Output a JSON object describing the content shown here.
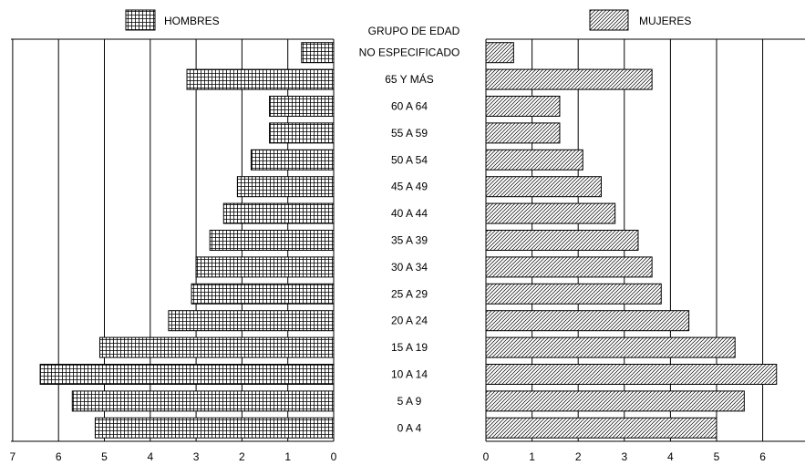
{
  "chart_data": {
    "type": "bar",
    "orientation": "population-pyramid",
    "center_title": "GRUPO DE EDAD",
    "legend": {
      "left": {
        "label": "HOMBRES",
        "pattern": "grid"
      },
      "right": {
        "label": "MUJERES",
        "pattern": "diagonal"
      }
    },
    "categories": [
      "NO ESPECIFICADO",
      "65 Y MÁS",
      "60 A 64",
      "55 A 59",
      "50 A 54",
      "45 A 49",
      "40 A 44",
      "35 A 39",
      "30 A 34",
      "25 A 29",
      "20 A 24",
      "15 A 19",
      "10 A 14",
      "5 A 9",
      "0 A 4"
    ],
    "series": [
      {
        "name": "HOMBRES",
        "side": "left",
        "values": [
          0.7,
          3.2,
          1.4,
          1.4,
          1.8,
          2.1,
          2.4,
          2.7,
          3.0,
          3.1,
          3.6,
          5.1,
          6.4,
          5.7,
          5.2
        ]
      },
      {
        "name": "MUJERES",
        "side": "right",
        "values": [
          0.6,
          3.6,
          1.6,
          1.6,
          2.1,
          2.5,
          2.8,
          3.3,
          3.6,
          3.8,
          4.4,
          5.4,
          6.3,
          5.6,
          5.0
        ]
      }
    ],
    "left_axis": {
      "ticks": [
        "7",
        "6",
        "5",
        "4",
        "3",
        "2",
        "1",
        "0"
      ],
      "range": [
        0,
        7
      ],
      "reversed": true
    },
    "right_axis": {
      "ticks": [
        "0",
        "1",
        "2",
        "3",
        "4",
        "5",
        "6"
      ],
      "range": [
        0,
        6.9
      ]
    },
    "grid": true,
    "colors": {
      "bar_fill": "#ffffff",
      "bar_pattern": "#000000",
      "grid": "#000000"
    }
  }
}
